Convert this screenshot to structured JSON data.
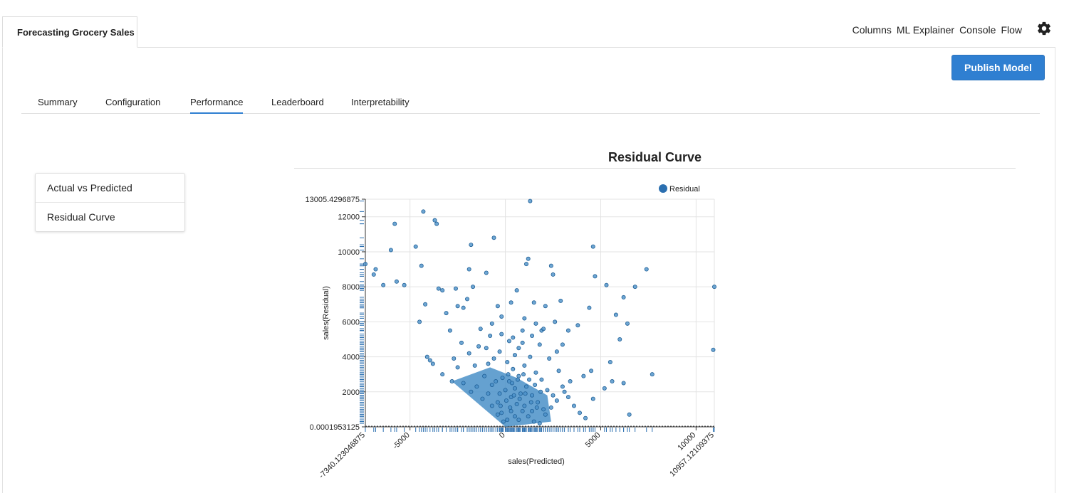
{
  "app": {
    "tab_title": "Forecasting Grocery Sales"
  },
  "top_nav": {
    "items": [
      "Columns",
      "ML Explainer",
      "Console",
      "Flow"
    ],
    "settings_icon": "gear-icon"
  },
  "toolbar": {
    "publish_label": "Publish Model"
  },
  "tabs": [
    {
      "label": "Summary",
      "active": false
    },
    {
      "label": "Configuration",
      "active": false
    },
    {
      "label": "Performance",
      "active": true
    },
    {
      "label": "Leaderboard",
      "active": false
    },
    {
      "label": "Interpretability",
      "active": false
    }
  ],
  "side_menu": {
    "items": [
      "Actual vs Predicted",
      "Residual Curve"
    ]
  },
  "colors": {
    "accent": "#2f7fd1",
    "point_fill": "#4a90c8",
    "point_stroke": "#1f5f96",
    "rug": "#2b6fb0"
  },
  "chart_data": {
    "type": "scatter",
    "title": "Residual Curve",
    "xlabel": "sales(Predicted)",
    "ylabel": "sales(Residual)",
    "xlim": [
      -7340.123046875,
      10957.12109375
    ],
    "ylim": [
      0.0001953125,
      13005.4296875
    ],
    "x_ticks": [
      "-7340.123046875",
      "-5000",
      "0",
      "5000",
      "10000",
      "10957.12109375"
    ],
    "x_tick_values": [
      -7340.123046875,
      -5000,
      0,
      5000,
      10000,
      10957.12109375
    ],
    "y_ticks": [
      "0.0001953125",
      "2000",
      "4000",
      "6000",
      "8000",
      "10000",
      "12000",
      "13005.4296875"
    ],
    "y_tick_values": [
      0.0001953125,
      2000,
      4000,
      6000,
      8000,
      10000,
      12000,
      13005.4296875
    ],
    "legend": {
      "label": "Residual",
      "position": "top-right"
    },
    "grid": true,
    "series": [
      {
        "name": "Residual",
        "points": [
          [
            -7340,
            9300
          ],
          [
            -6900,
            8700
          ],
          [
            -6800,
            9000
          ],
          [
            -6400,
            8100
          ],
          [
            -6000,
            10100
          ],
          [
            -5800,
            11600
          ],
          [
            -5700,
            8300
          ],
          [
            -5300,
            8100
          ],
          [
            -4700,
            10300
          ],
          [
            -4500,
            6000
          ],
          [
            -4400,
            9200
          ],
          [
            -4300,
            12300
          ],
          [
            -4200,
            7000
          ],
          [
            -4100,
            4000
          ],
          [
            -3950,
            3800
          ],
          [
            -3800,
            3600
          ],
          [
            -3700,
            11800
          ],
          [
            -3600,
            11600
          ],
          [
            -3500,
            7900
          ],
          [
            -3300,
            7800
          ],
          [
            -3100,
            6500
          ],
          [
            -2900,
            5500
          ],
          [
            -2600,
            7900
          ],
          [
            -2500,
            6900
          ],
          [
            -2200,
            6800
          ],
          [
            -2000,
            7300
          ],
          [
            -1800,
            10400
          ],
          [
            -1700,
            8000
          ],
          [
            -1900,
            9000
          ],
          [
            -1000,
            8800
          ],
          [
            -600,
            10800
          ],
          [
            -800,
            5200
          ],
          [
            -400,
            6900
          ],
          [
            -200,
            6300
          ],
          [
            300,
            7100
          ],
          [
            600,
            7800
          ],
          [
            700,
            4500
          ],
          [
            900,
            5500
          ],
          [
            1000,
            6200
          ],
          [
            1100,
            9300
          ],
          [
            1200,
            9600
          ],
          [
            1300,
            12900
          ],
          [
            1500,
            7100
          ],
          [
            1600,
            5900
          ],
          [
            1900,
            5500
          ],
          [
            2100,
            6900
          ],
          [
            2400,
            9200
          ],
          [
            2500,
            8700
          ],
          [
            2600,
            6000
          ],
          [
            2900,
            7200
          ],
          [
            3000,
            4700
          ],
          [
            3300,
            5500
          ],
          [
            3800,
            5800
          ],
          [
            4100,
            2900
          ],
          [
            4400,
            6800
          ],
          [
            4600,
            10300
          ],
          [
            4700,
            8600
          ],
          [
            4500,
            3200
          ],
          [
            5300,
            8100
          ],
          [
            5500,
            3700
          ],
          [
            5800,
            6400
          ],
          [
            6000,
            5000
          ],
          [
            6200,
            7400
          ],
          [
            6400,
            5900
          ],
          [
            6500,
            700
          ],
          [
            6800,
            8000
          ],
          [
            7400,
            9000
          ],
          [
            7700,
            3000
          ],
          [
            10900,
            4400
          ],
          [
            10957,
            8000
          ],
          [
            -3300,
            3000
          ],
          [
            -2800,
            2600
          ],
          [
            -2200,
            2500
          ],
          [
            -1500,
            2300
          ],
          [
            -900,
            1900
          ],
          [
            -400,
            1400
          ],
          [
            -200,
            800
          ],
          [
            100,
            400
          ],
          [
            -1800,
            2000
          ],
          [
            -1200,
            1600
          ],
          [
            -2500,
            3400
          ],
          [
            -1900,
            4200
          ],
          [
            -1400,
            4600
          ],
          [
            -900,
            3600
          ],
          [
            -500,
            2600
          ],
          [
            0,
            2100
          ],
          [
            300,
            1700
          ],
          [
            600,
            1300
          ],
          [
            900,
            900
          ],
          [
            1200,
            600
          ],
          [
            1500,
            300
          ],
          [
            1800,
            200
          ],
          [
            2100,
            700
          ],
          [
            2400,
            1100
          ],
          [
            2700,
            1500
          ],
          [
            3000,
            2300
          ],
          [
            3300,
            1700
          ],
          [
            3600,
            1200
          ],
          [
            3900,
            800
          ],
          [
            4200,
            500
          ],
          [
            4600,
            1600
          ],
          [
            5200,
            2200
          ],
          [
            5600,
            2600
          ],
          [
            6200,
            2500
          ],
          [
            -600,
            3900
          ],
          [
            -300,
            4300
          ],
          [
            100,
            3700
          ],
          [
            400,
            3300
          ],
          [
            700,
            2900
          ],
          [
            1000,
            3500
          ],
          [
            1300,
            4000
          ],
          [
            1600,
            3100
          ],
          [
            1900,
            2700
          ],
          [
            2200,
            2100
          ],
          [
            2500,
            1800
          ],
          [
            2800,
            3200
          ],
          [
            3100,
            2000
          ],
          [
            3400,
            2600
          ],
          [
            -1100,
            2900
          ],
          [
            -700,
            2400
          ],
          [
            -300,
            1900
          ],
          [
            200,
            2600
          ],
          [
            500,
            2200
          ],
          [
            800,
            1900
          ],
          [
            1100,
            2300
          ],
          [
            1400,
            1800
          ],
          [
            1700,
            1400
          ],
          [
            2000,
            1000
          ],
          [
            -1600,
            3500
          ],
          [
            -1000,
            4500
          ],
          [
            -200,
            5300
          ],
          [
            200,
            4900
          ],
          [
            500,
            4100
          ],
          [
            1800,
            4700
          ],
          [
            2300,
            3900
          ],
          [
            2700,
            4300
          ],
          [
            -700,
            1200
          ],
          [
            -400,
            700
          ],
          [
            -100,
            300
          ],
          [
            300,
            900
          ],
          [
            500,
            600
          ],
          [
            700,
            400
          ],
          [
            1000,
            1200
          ],
          [
            1400,
            900
          ],
          [
            -2700,
            3900
          ],
          [
            -2300,
            4800
          ],
          [
            -1300,
            5600
          ],
          [
            -700,
            5900
          ],
          [
            400,
            5100
          ],
          [
            900,
            4800
          ],
          [
            1400,
            5200
          ],
          [
            2000,
            5600
          ],
          [
            -150,
            2800
          ],
          [
            150,
            3000
          ],
          [
            350,
            2500
          ],
          [
            650,
            2700
          ],
          [
            950,
            3000
          ],
          [
            1250,
            2700
          ],
          [
            1550,
            2400
          ],
          [
            1850,
            2000
          ],
          [
            -250,
            1200
          ],
          [
            50,
            1500
          ],
          [
            250,
            1100
          ],
          [
            450,
            1800
          ],
          [
            750,
            1600
          ],
          [
            1050,
            1900
          ],
          [
            1350,
            1400
          ],
          [
            1650,
            1100
          ]
        ]
      }
    ]
  }
}
